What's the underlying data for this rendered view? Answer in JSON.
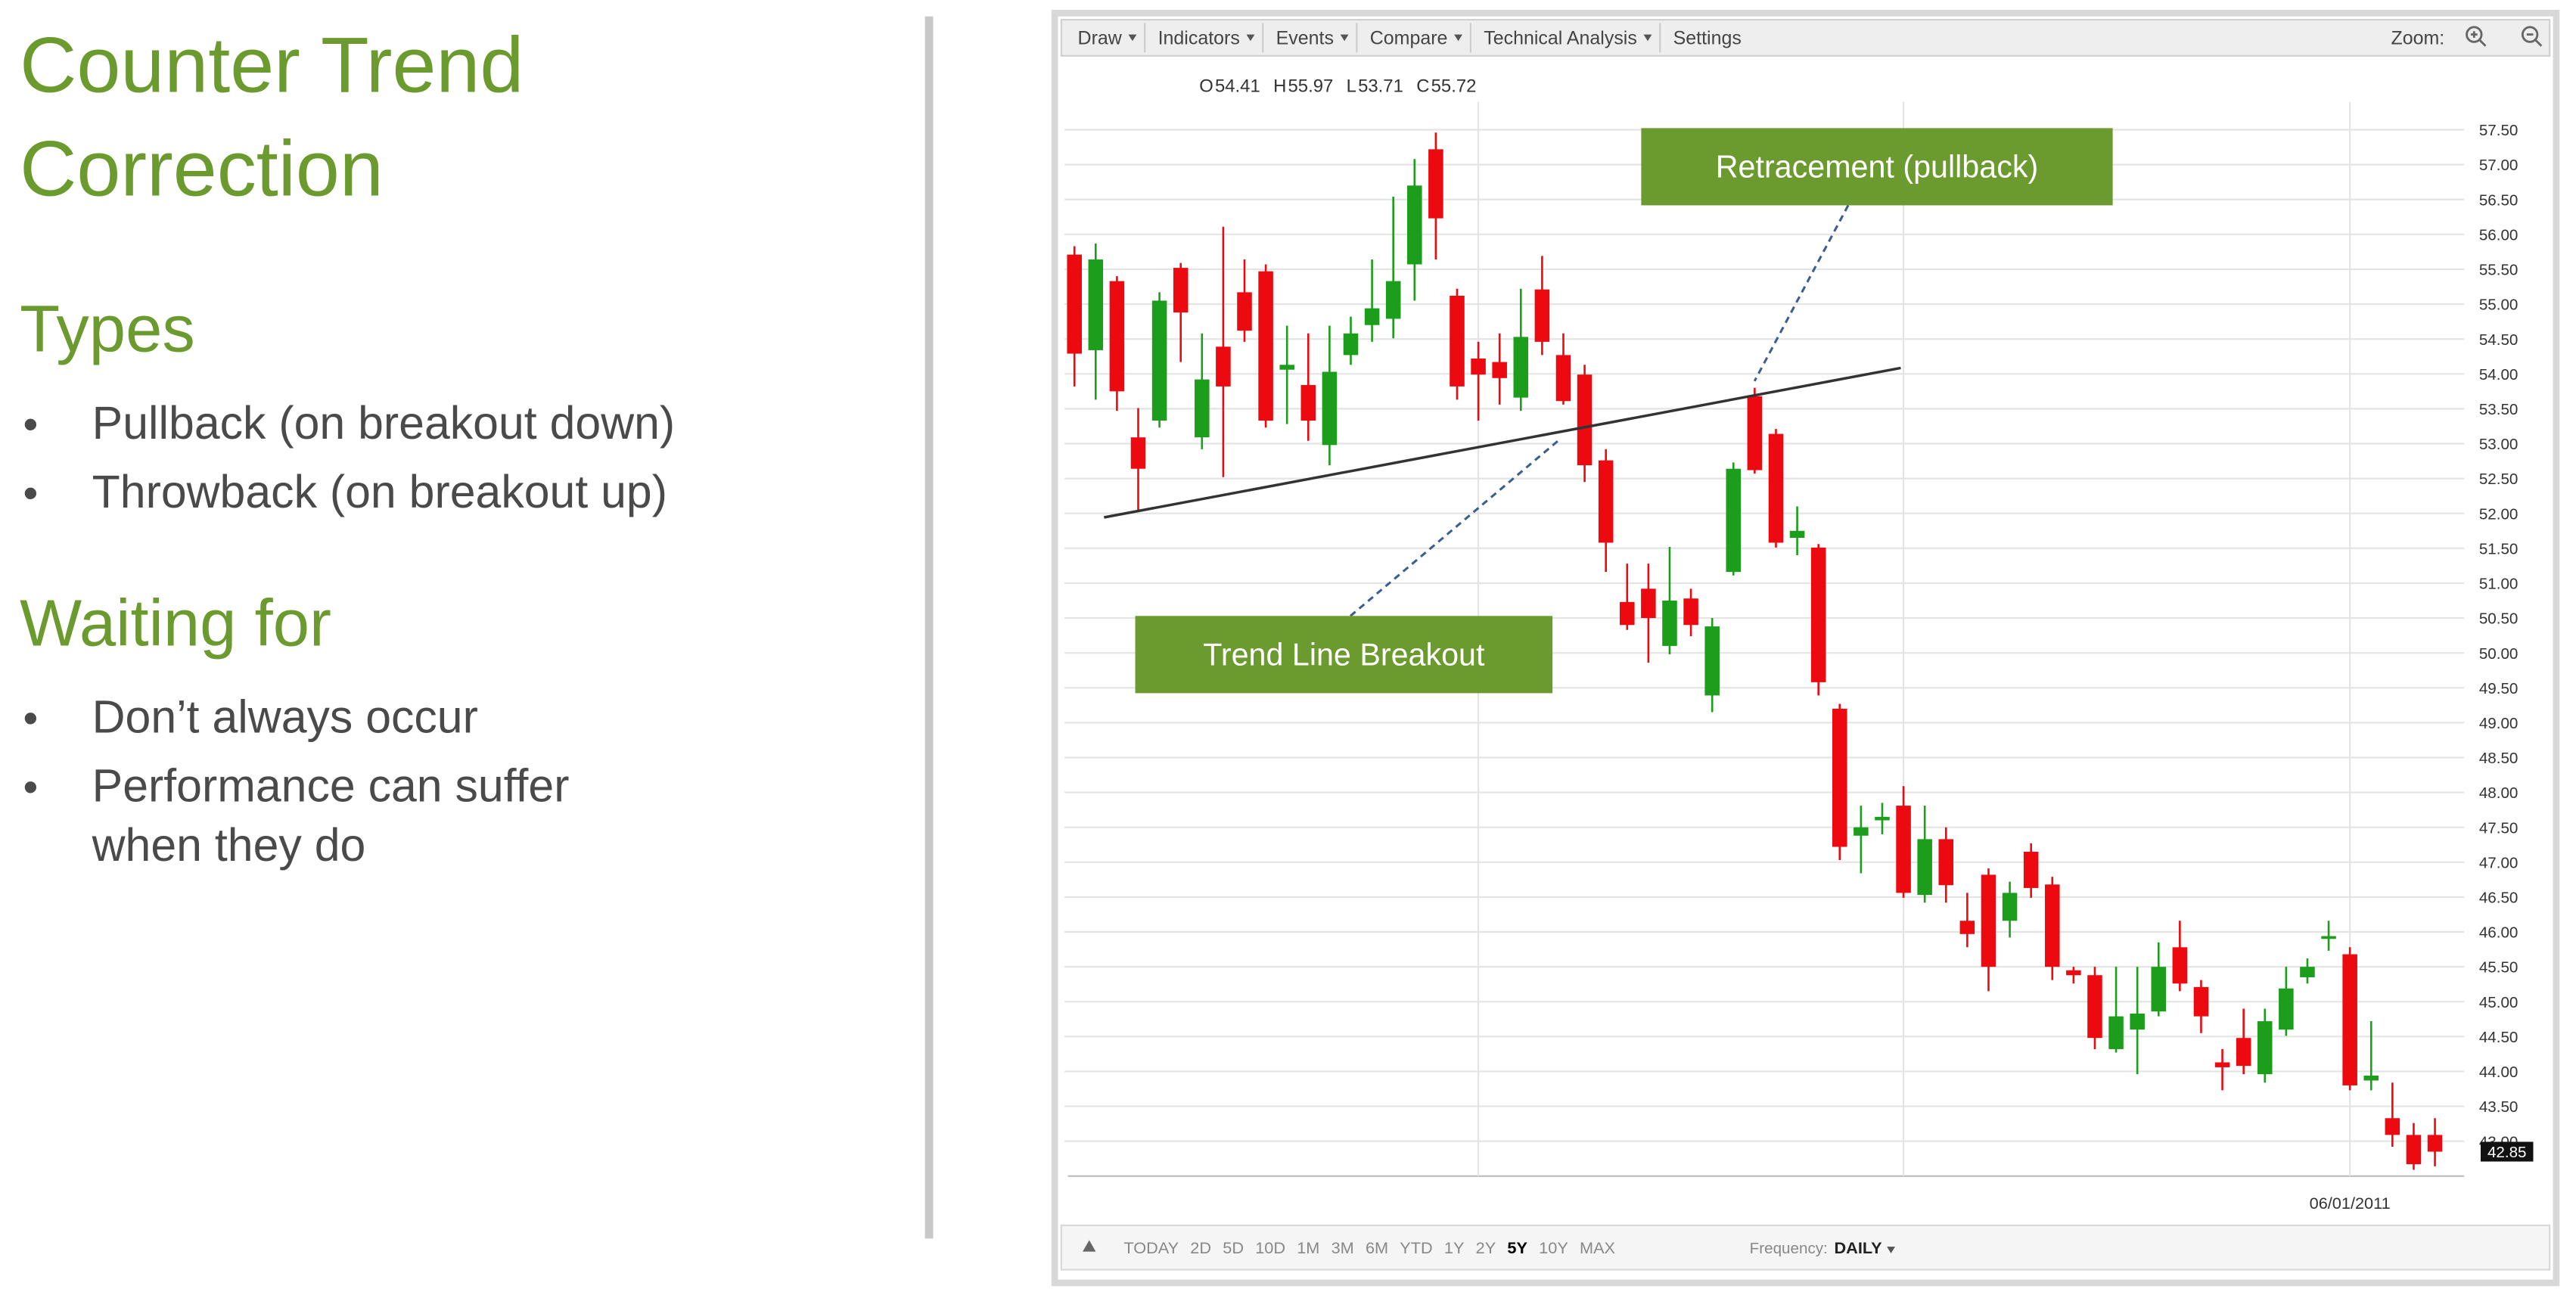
{
  "slide": {
    "title": [
      "Counter Trend",
      "Correction"
    ],
    "sections": [
      {
        "heading": "Types",
        "bullets": [
          [
            "Pullback (on breakout down)"
          ],
          [
            "Throwback (on breakout up)"
          ]
        ]
      },
      {
        "heading": "Waiting for",
        "bullets": [
          [
            "Don’t always occur"
          ],
          [
            "Performance can suffer",
            "when they do"
          ]
        ]
      }
    ]
  },
  "toolbar": {
    "menus": [
      "Draw",
      "Indicators",
      "Events",
      "Compare",
      "Technical Analysis",
      "Settings"
    ],
    "zoom": "Zoom:"
  },
  "range_bar": {
    "ranges": [
      {
        "label": "TODAY"
      },
      {
        "label": "2D"
      },
      {
        "label": "5D"
      },
      {
        "label": "10D"
      },
      {
        "label": "1M"
      },
      {
        "label": "3M"
      },
      {
        "label": "6M"
      },
      {
        "label": "YTD"
      },
      {
        "label": "1Y"
      },
      {
        "label": "2Y"
      },
      {
        "label": "5Y",
        "selected": true
      },
      {
        "label": "10Y"
      },
      {
        "label": "MAX"
      }
    ],
    "frequency_label": "Frequency:",
    "frequency": "DAILY"
  },
  "chart_data": {
    "type": "candlestick",
    "readout": [
      {
        "key": "O",
        "value": 54.41
      },
      {
        "key": "H",
        "value": 55.97
      },
      {
        "key": "L",
        "value": 53.71
      },
      {
        "key": "C",
        "value": 55.72
      }
    ],
    "categories": [
      null,
      null,
      null,
      null,
      null,
      null,
      null,
      null,
      null,
      null,
      null,
      null,
      null,
      null,
      null,
      null,
      null,
      null,
      null,
      null,
      null,
      null,
      null,
      null,
      null,
      null,
      null,
      null,
      null,
      null,
      null,
      null,
      null,
      null,
      null,
      null,
      null,
      null,
      null,
      null,
      null,
      null,
      null,
      null,
      null,
      null,
      null,
      null,
      null,
      null,
      null,
      null,
      null,
      null,
      null,
      null,
      null,
      null,
      null,
      null,
      "06/01/2011",
      null,
      null,
      null,
      null
    ],
    "open": [
      55.71,
      54.34,
      55.33,
      53.09,
      53.33,
      55.52,
      53.09,
      54.39,
      55.17,
      55.47,
      54.06,
      53.84,
      52.98,
      54.27,
      54.7,
      54.79,
      55.57,
      57.22,
      55.12,
      54.22,
      54.17,
      53.66,
      55.21,
      54.27,
      53.99,
      52.76,
      50.73,
      50.92,
      50.1,
      50.78,
      49.39,
      51.16,
      53.68,
      53.14,
      51.65,
      51.51,
      49.2,
      47.38,
      47.6,
      47.81,
      46.53,
      47.33,
      46.16,
      46.82,
      46.16,
      47.15,
      46.68,
      45.45,
      45.38,
      44.32,
      44.6,
      44.86,
      45.78,
      45.21,
      44.13,
      44.48,
      43.96,
      44.6,
      45.35,
      45.9,
      45.68,
      43.87,
      43.33,
      43.09,
      43.09
    ],
    "high": [
      55.83,
      55.87,
      55.4,
      53.51,
      55.17,
      55.59,
      54.58,
      56.11,
      55.64,
      55.57,
      54.69,
      54.58,
      54.69,
      54.82,
      55.64,
      56.54,
      57.08,
      57.46,
      55.22,
      54.46,
      54.58,
      55.22,
      55.69,
      54.58,
      54.13,
      52.92,
      51.28,
      51.28,
      51.52,
      50.92,
      50.5,
      52.73,
      53.8,
      53.21,
      52.1,
      51.56,
      49.27,
      47.81,
      47.85,
      48.09,
      47.81,
      47.5,
      46.56,
      46.91,
      46.72,
      47.27,
      46.79,
      45.5,
      45.5,
      45.5,
      45.5,
      45.85,
      46.16,
      45.31,
      44.32,
      44.9,
      44.9,
      45.5,
      45.62,
      46.16,
      45.78,
      44.72,
      43.84,
      43.26,
      43.33
    ],
    "low": [
      53.82,
      53.63,
      53.47,
      52.03,
      53.23,
      54.17,
      52.92,
      52.52,
      54.46,
      53.23,
      53.28,
      53.04,
      52.69,
      54.13,
      54.46,
      54.51,
      55.05,
      55.64,
      53.63,
      53.33,
      53.56,
      53.47,
      54.27,
      53.56,
      52.45,
      51.16,
      50.33,
      49.86,
      49.98,
      50.24,
      49.15,
      51.11,
      52.57,
      51.51,
      51.4,
      49.39,
      47.03,
      46.84,
      47.4,
      46.49,
      46.42,
      46.42,
      45.78,
      45.15,
      45.92,
      46.49,
      45.31,
      45.26,
      44.32,
      44.27,
      43.96,
      44.79,
      45.15,
      44.55,
      43.73,
      43.96,
      43.84,
      44.51,
      45.26,
      45.73,
      43.73,
      43.73,
      42.92,
      42.59,
      42.64
    ],
    "close": [
      54.29,
      55.64,
      53.75,
      52.64,
      55.05,
      54.88,
      53.92,
      53.82,
      54.62,
      53.33,
      54.13,
      53.33,
      54.03,
      54.58,
      54.94,
      55.33,
      56.7,
      56.23,
      53.82,
      53.99,
      53.94,
      54.53,
      54.46,
      53.61,
      52.69,
      51.58,
      50.4,
      50.5,
      50.75,
      50.4,
      50.38,
      52.64,
      52.62,
      51.58,
      51.75,
      49.58,
      47.22,
      47.5,
      47.65,
      46.56,
      47.33,
      46.67,
      45.97,
      45.5,
      46.56,
      46.63,
      45.5,
      45.38,
      44.48,
      44.79,
      44.83,
      45.5,
      45.26,
      44.79,
      44.06,
      44.08,
      44.72,
      45.19,
      45.5,
      45.94,
      43.8,
      43.94,
      43.09,
      42.67,
      42.85
    ],
    "up_color": "#1c9e1c",
    "down_color": "#ec0a10",
    "ylim": [
      42.5,
      57.9
    ],
    "yticks": [
      {
        "value": 57.5,
        "label": "57.50"
      },
      {
        "value": 57,
        "label": "57.00"
      },
      {
        "value": 56.5,
        "label": "56.50"
      },
      {
        "value": 56,
        "label": "56.00"
      },
      {
        "value": 55.5,
        "label": "55.50"
      },
      {
        "value": 55,
        "label": "55.00"
      },
      {
        "value": 54.5,
        "label": "54.50"
      },
      {
        "value": 54,
        "label": "54.00"
      },
      {
        "value": 53.5,
        "label": "53.50"
      },
      {
        "value": 53,
        "label": "53.00"
      },
      {
        "value": 52.5,
        "label": "52.50"
      },
      {
        "value": 52,
        "label": "52.00"
      },
      {
        "value": 51.5,
        "label": "51.50"
      },
      {
        "value": 51,
        "label": "51.00"
      },
      {
        "value": 50.5,
        "label": "50.50"
      },
      {
        "value": 50,
        "label": "50.00"
      },
      {
        "value": 49.5,
        "label": "49.50"
      },
      {
        "value": 49,
        "label": "49.00"
      },
      {
        "value": 48.5,
        "label": "48.50"
      },
      {
        "value": 48,
        "label": "48.00"
      },
      {
        "value": 47.5,
        "label": "47.50"
      },
      {
        "value": 47,
        "label": "47.00"
      },
      {
        "value": 46.5,
        "label": "46.50"
      },
      {
        "value": 46,
        "label": "46.00"
      },
      {
        "value": 45.5,
        "label": "45.50"
      },
      {
        "value": 45,
        "label": "45.00"
      },
      {
        "value": 44.5,
        "label": "44.50"
      },
      {
        "value": 44,
        "label": "44.00"
      },
      {
        "value": 43.5,
        "label": "43.50"
      },
      {
        "value": 43,
        "label": "43.00"
      }
    ],
    "grid": true,
    "last_price": 42.85,
    "annotations": [
      "Retracement (pullback)",
      "Trend Line Breakout"
    ]
  }
}
